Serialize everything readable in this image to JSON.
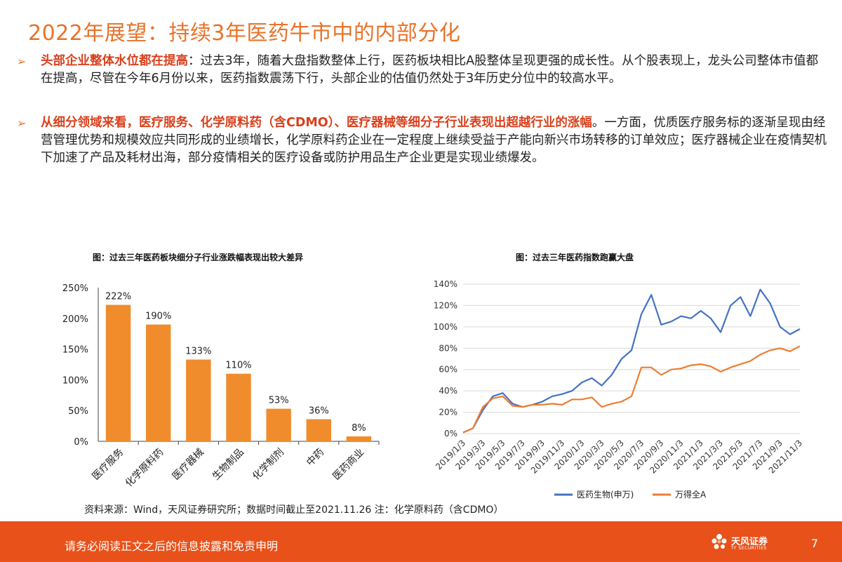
{
  "page": {
    "title": "2022年展望：持续3年医药牛市中的内部分化",
    "bullets": [
      {
        "emphasis": "头部企业整体水位都在提高",
        "text": "：过去3年，随着大盘指数整体上行，医药板块相比A股整体呈现更强的成长性。从个股表现上，龙头公司整体市值都在提高，尽管在今年6月份以来，医药指数震荡下行，头部企业的估值仍然处于3年历史分位中的较高水平。"
      },
      {
        "emphasis": "从细分领域来看，医疗服务、化学原料药（含CDMO）、医疗器械等细分子行业表现出超越行业的涨幅",
        "text": "。一方面，优质医疗服务标的逐渐呈现由经营管理优势和规模效应共同形成的业绩增长，化学原料药企业在一定程度上继续受益于产能向新兴市场转移的订单效应；医疗器械企业在疫情契机下加速了产品及耗材出海，部分疫情相关的医疗设备或防护用品生产企业更是实现业绩爆发。"
      }
    ],
    "source": "资料来源：Wind，天风证券研究所；数据时间截止至2021.11.26 注：化学原料药（含CDMO）",
    "footer_disclaimer": "请务必阅读正文之后的信息披露和免责申明",
    "logo_text": "天风证券",
    "logo_sub": "TF SECURITIES",
    "page_number": "7",
    "accent_color": "#e8732a",
    "emphasis_color": "#d8401c",
    "footer_color": "#e8511a"
  },
  "chart_data": [
    {
      "type": "bar",
      "title": "图：过去三年医药板块细分子行业涨跌幅表现出较大差异",
      "categories": [
        "医疗服务",
        "化学原料药",
        "医疗器械",
        "生物制品",
        "化学制剂",
        "中药",
        "医药商业"
      ],
      "values": [
        222,
        190,
        133,
        110,
        53,
        36,
        8
      ],
      "value_labels": [
        "222%",
        "190%",
        "133%",
        "110%",
        "53%",
        "36%",
        "8%"
      ],
      "ylim": [
        0,
        250
      ],
      "yticks": [
        "0%",
        "50%",
        "100%",
        "150%",
        "200%",
        "250%"
      ],
      "bar_color": "#f08c2c"
    },
    {
      "type": "line",
      "title": "图：过去三年医药指数跑赢大盘",
      "ylim": [
        0,
        140
      ],
      "yticks": [
        "0%",
        "20%",
        "40%",
        "60%",
        "80%",
        "100%",
        "120%",
        "140%"
      ],
      "xticks": [
        "2019/1/3",
        "2019/3/3",
        "2019/5/3",
        "2019/7/3",
        "2019/9/3",
        "2019/11/3",
        "2020/1/3",
        "2020/3/3",
        "2020/5/3",
        "2020/7/3",
        "2020/9/3",
        "2020/11/3",
        "2021/1/3",
        "2021/3/3",
        "2021/5/3",
        "2021/7/3",
        "2021/9/3",
        "2021/11/3"
      ],
      "x_months": [
        "2019/1",
        "2019/2",
        "2019/3",
        "2019/4",
        "2019/5",
        "2019/6",
        "2019/7",
        "2019/8",
        "2019/9",
        "2019/10",
        "2019/11",
        "2019/12",
        "2020/1",
        "2020/2",
        "2020/3",
        "2020/4",
        "2020/5",
        "2020/6",
        "2020/7",
        "2020/8",
        "2020/9",
        "2020/10",
        "2020/11",
        "2020/12",
        "2021/1",
        "2021/2",
        "2021/3",
        "2021/4",
        "2021/5",
        "2021/6",
        "2021/7",
        "2021/8",
        "2021/9",
        "2021/10",
        "2021/11"
      ],
      "series": [
        {
          "name": "医药生物(申万)",
          "color": "#4472c4",
          "values": [
            1,
            5,
            22,
            35,
            38,
            28,
            25,
            27,
            30,
            35,
            37,
            40,
            48,
            52,
            45,
            55,
            70,
            78,
            112,
            130,
            102,
            105,
            110,
            108,
            115,
            108,
            95,
            120,
            128,
            110,
            135,
            122,
            100,
            93,
            98
          ]
        },
        {
          "name": "万得全A",
          "color": "#ed7d31",
          "values": [
            1,
            5,
            25,
            33,
            35,
            26,
            25,
            27,
            27,
            28,
            27,
            32,
            32,
            34,
            25,
            28,
            30,
            35,
            62,
            62,
            55,
            60,
            61,
            64,
            65,
            63,
            58,
            62,
            65,
            68,
            74,
            78,
            80,
            77,
            82
          ]
        }
      ]
    }
  ]
}
